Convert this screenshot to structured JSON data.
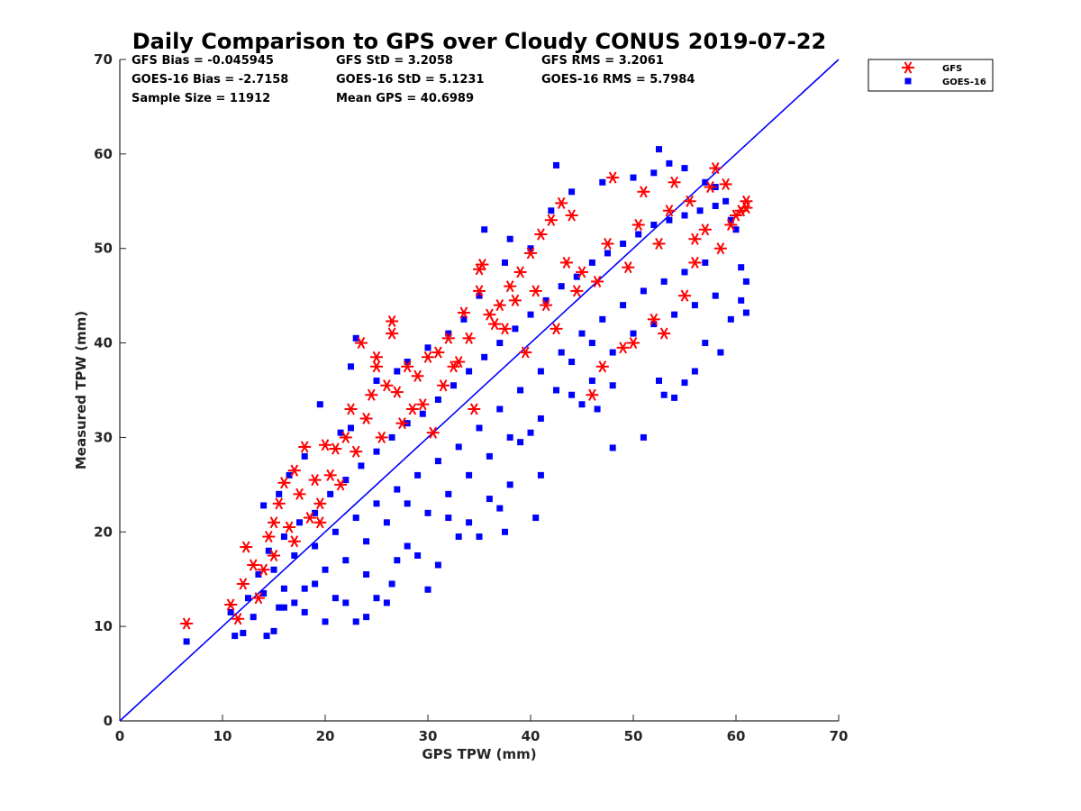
{
  "chart_data": {
    "type": "scatter",
    "title": "Daily Comparison to GPS over Cloudy CONUS 2019-07-22",
    "xlabel": "GPS TPW (mm)",
    "ylabel": "Measured TPW (mm)",
    "xlim": [
      0,
      70
    ],
    "ylim": [
      0,
      70
    ],
    "xticks": [
      "0",
      "10",
      "20",
      "30",
      "40",
      "50",
      "60",
      "70"
    ],
    "yticks": [
      "0",
      "10",
      "20",
      "30",
      "40",
      "50",
      "60",
      "70"
    ],
    "grid": false,
    "legend_position": "outside-top-right",
    "stats": [
      [
        "GFS Bias = -0.045945",
        "GFS StD = 3.2058",
        "GFS RMS = 3.2061"
      ],
      [
        "GOES-16 Bias = -2.7158",
        "GOES-16 StD = 5.1231",
        "GOES-16 RMS = 5.7984"
      ],
      [
        "Sample Size = 11912",
        "Mean GPS = 40.6989",
        ""
      ]
    ],
    "reference_line": {
      "type": "one-to-one",
      "x": [
        0,
        70
      ],
      "y": [
        0,
        70
      ],
      "color": "#0000ff"
    },
    "series": [
      {
        "name": "GOES-16",
        "marker": "square",
        "color": "#0000ff",
        "points": [
          [
            6.5,
            8.4
          ],
          [
            10.8,
            11.5
          ],
          [
            11.2,
            9.0
          ],
          [
            12.0,
            9.3
          ],
          [
            13.0,
            11.0
          ],
          [
            14.0,
            13.5
          ],
          [
            14.3,
            9.0
          ],
          [
            15.0,
            9.5
          ],
          [
            15.5,
            12.0
          ],
          [
            16.0,
            14.0
          ],
          [
            17.0,
            12.5
          ],
          [
            18.0,
            11.5
          ],
          [
            19.0,
            14.5
          ],
          [
            20.0,
            10.5
          ],
          [
            21.0,
            13.0
          ],
          [
            22.0,
            12.5
          ],
          [
            23.0,
            10.5
          ],
          [
            24.0,
            11.0
          ],
          [
            25.0,
            13.0
          ],
          [
            26.0,
            12.5
          ],
          [
            26.5,
            14.5
          ],
          [
            14.0,
            22.8
          ],
          [
            15.5,
            24.0
          ],
          [
            16.5,
            26.0
          ],
          [
            18.0,
            28.0
          ],
          [
            19.5,
            33.5
          ],
          [
            21.5,
            30.5
          ],
          [
            22.5,
            31.0
          ],
          [
            23.0,
            40.5
          ],
          [
            22.5,
            37.5
          ],
          [
            25.0,
            36.0
          ],
          [
            27.0,
            37.0
          ],
          [
            28.0,
            38.0
          ],
          [
            30.0,
            39.5
          ],
          [
            32.0,
            41.0
          ],
          [
            33.5,
            42.5
          ],
          [
            35.0,
            45.0
          ],
          [
            35.5,
            52.0
          ],
          [
            37.5,
            48.5
          ],
          [
            38.0,
            51.0
          ],
          [
            40.0,
            50.0
          ],
          [
            42.0,
            54.0
          ],
          [
            42.5,
            58.8
          ],
          [
            44.0,
            56.0
          ],
          [
            47.0,
            57.0
          ],
          [
            50.0,
            57.5
          ],
          [
            52.0,
            58.0
          ],
          [
            52.5,
            60.5
          ],
          [
            53.5,
            59.0
          ],
          [
            55.0,
            58.5
          ],
          [
            57.0,
            57.0
          ],
          [
            58.0,
            56.5
          ],
          [
            59.0,
            55.0
          ],
          [
            59.5,
            53.0
          ],
          [
            60.0,
            52.0
          ],
          [
            60.5,
            48.0
          ],
          [
            61.0,
            46.5
          ],
          [
            60.5,
            44.5
          ],
          [
            61.0,
            43.2
          ],
          [
            59.5,
            42.5
          ],
          [
            58.5,
            39.0
          ],
          [
            57.0,
            40.0
          ],
          [
            56.0,
            37.0
          ],
          [
            55.0,
            35.8
          ],
          [
            54.0,
            34.2
          ],
          [
            53.0,
            34.5
          ],
          [
            52.5,
            36.0
          ],
          [
            51.0,
            30.0
          ],
          [
            48.0,
            28.9
          ],
          [
            48.0,
            35.5
          ],
          [
            46.5,
            33.0
          ],
          [
            46.0,
            36.0
          ],
          [
            45.0,
            33.5
          ],
          [
            44.0,
            34.5
          ],
          [
            42.5,
            35.0
          ],
          [
            41.0,
            32.0
          ],
          [
            40.0,
            30.5
          ],
          [
            39.0,
            29.5
          ],
          [
            38.0,
            25.0
          ],
          [
            37.0,
            22.5
          ],
          [
            36.0,
            23.5
          ],
          [
            35.0,
            19.5
          ],
          [
            34.0,
            21.0
          ],
          [
            33.0,
            19.5
          ],
          [
            32.0,
            21.5
          ],
          [
            31.0,
            16.5
          ],
          [
            30.0,
            13.9
          ],
          [
            29.0,
            17.5
          ],
          [
            28.0,
            18.5
          ],
          [
            27.0,
            17.0
          ],
          [
            40.5,
            21.5
          ],
          [
            41.0,
            26.0
          ],
          [
            37.5,
            20.0
          ],
          [
            12.5,
            13.0
          ],
          [
            13.5,
            15.5
          ],
          [
            14.5,
            18.0
          ],
          [
            16.0,
            19.5
          ],
          [
            17.5,
            21.0
          ],
          [
            19.0,
            22.0
          ],
          [
            20.5,
            24.0
          ],
          [
            22.0,
            25.5
          ],
          [
            23.5,
            27.0
          ],
          [
            25.0,
            28.5
          ],
          [
            26.5,
            30.0
          ],
          [
            28.0,
            31.5
          ],
          [
            29.5,
            32.5
          ],
          [
            31.0,
            34.0
          ],
          [
            32.5,
            35.5
          ],
          [
            34.0,
            37.0
          ],
          [
            35.5,
            38.5
          ],
          [
            37.0,
            40.0
          ],
          [
            38.5,
            41.5
          ],
          [
            40.0,
            43.0
          ],
          [
            41.5,
            44.5
          ],
          [
            43.0,
            46.0
          ],
          [
            44.5,
            47.0
          ],
          [
            46.0,
            48.5
          ],
          [
            47.5,
            49.5
          ],
          [
            49.0,
            50.5
          ],
          [
            50.5,
            51.5
          ],
          [
            52.0,
            52.5
          ],
          [
            53.5,
            53.0
          ],
          [
            55.0,
            53.5
          ],
          [
            56.5,
            54.0
          ],
          [
            58.0,
            54.5
          ],
          [
            15.0,
            16.0
          ],
          [
            17.0,
            17.5
          ],
          [
            19.0,
            18.5
          ],
          [
            21.0,
            20.0
          ],
          [
            23.0,
            21.5
          ],
          [
            25.0,
            23.0
          ],
          [
            27.0,
            24.5
          ],
          [
            29.0,
            26.0
          ],
          [
            31.0,
            27.5
          ],
          [
            33.0,
            29.0
          ],
          [
            35.0,
            31.0
          ],
          [
            37.0,
            33.0
          ],
          [
            39.0,
            35.0
          ],
          [
            41.0,
            37.0
          ],
          [
            43.0,
            39.0
          ],
          [
            45.0,
            41.0
          ],
          [
            47.0,
            42.5
          ],
          [
            49.0,
            44.0
          ],
          [
            51.0,
            45.5
          ],
          [
            53.0,
            46.5
          ],
          [
            55.0,
            47.5
          ],
          [
            57.0,
            48.5
          ],
          [
            24.0,
            19.0
          ],
          [
            26.0,
            21.0
          ],
          [
            28.0,
            23.0
          ],
          [
            30.0,
            22.0
          ],
          [
            32.0,
            24.0
          ],
          [
            34.0,
            26.0
          ],
          [
            36.0,
            28.0
          ],
          [
            38.0,
            30.0
          ],
          [
            44.0,
            38.0
          ],
          [
            46.0,
            40.0
          ],
          [
            48.0,
            39.0
          ],
          [
            50.0,
            41.0
          ],
          [
            52.0,
            42.0
          ],
          [
            54.0,
            43.0
          ],
          [
            56.0,
            44.0
          ],
          [
            58.0,
            45.0
          ],
          [
            20.0,
            16.0
          ],
          [
            22.0,
            17.0
          ],
          [
            24.0,
            15.5
          ],
          [
            18.0,
            14.0
          ],
          [
            16.0,
            12.0
          ]
        ]
      },
      {
        "name": "GFS",
        "marker": "asterisk",
        "color": "#ff0000",
        "points": [
          [
            6.5,
            10.3
          ],
          [
            10.8,
            12.3
          ],
          [
            11.5,
            10.8
          ],
          [
            12.0,
            14.5
          ],
          [
            12.3,
            18.4
          ],
          [
            13.0,
            16.5
          ],
          [
            13.5,
            13.0
          ],
          [
            14.0,
            16.0
          ],
          [
            14.5,
            19.5
          ],
          [
            15.0,
            21.0
          ],
          [
            15.5,
            23.0
          ],
          [
            16.0,
            25.2
          ],
          [
            16.5,
            20.5
          ],
          [
            17.0,
            26.5
          ],
          [
            17.5,
            24.0
          ],
          [
            18.0,
            29.0
          ],
          [
            19.0,
            25.5
          ],
          [
            19.5,
            23.0
          ],
          [
            20.0,
            29.2
          ],
          [
            20.5,
            26.0
          ],
          [
            21.0,
            28.8
          ],
          [
            22.0,
            30.0
          ],
          [
            22.5,
            33.0
          ],
          [
            23.5,
            40.0
          ],
          [
            24.0,
            32.0
          ],
          [
            24.5,
            34.5
          ],
          [
            25.0,
            37.5
          ],
          [
            25.0,
            38.5
          ],
          [
            26.0,
            35.5
          ],
          [
            26.5,
            41.0
          ],
          [
            26.5,
            42.3
          ],
          [
            27.0,
            34.8
          ],
          [
            28.0,
            37.5
          ],
          [
            29.0,
            36.5
          ],
          [
            30.0,
            38.5
          ],
          [
            31.0,
            39.0
          ],
          [
            32.0,
            40.5
          ],
          [
            33.0,
            38.0
          ],
          [
            33.5,
            43.2
          ],
          [
            34.0,
            40.5
          ],
          [
            35.0,
            45.5
          ],
          [
            35.0,
            47.8
          ],
          [
            35.3,
            48.3
          ],
          [
            36.0,
            43.0
          ],
          [
            37.0,
            44.0
          ],
          [
            38.0,
            46.0
          ],
          [
            39.0,
            47.5
          ],
          [
            40.0,
            49.5
          ],
          [
            41.0,
            51.5
          ],
          [
            42.0,
            53.0
          ],
          [
            43.0,
            54.8
          ],
          [
            44.0,
            53.5
          ],
          [
            46.0,
            34.5
          ],
          [
            47.0,
            37.5
          ],
          [
            48.0,
            57.5
          ],
          [
            49.0,
            39.5
          ],
          [
            50.0,
            40.0
          ],
          [
            51.0,
            56.0
          ],
          [
            52.0,
            42.5
          ],
          [
            53.0,
            41.0
          ],
          [
            54.0,
            57.0
          ],
          [
            55.0,
            45.0
          ],
          [
            56.0,
            48.5
          ],
          [
            57.0,
            52.0
          ],
          [
            58.0,
            58.5
          ],
          [
            59.0,
            56.8
          ],
          [
            59.5,
            52.5
          ],
          [
            60.0,
            53.5
          ],
          [
            60.5,
            54.0
          ],
          [
            61.0,
            55.0
          ],
          [
            61.0,
            54.3
          ],
          [
            18.5,
            21.5
          ],
          [
            21.5,
            25.0
          ],
          [
            23.0,
            28.5
          ],
          [
            27.5,
            31.5
          ],
          [
            29.5,
            33.5
          ],
          [
            31.5,
            35.5
          ],
          [
            36.5,
            42.0
          ],
          [
            38.5,
            44.5
          ],
          [
            40.5,
            45.5
          ],
          [
            43.5,
            48.5
          ],
          [
            45.0,
            47.5
          ],
          [
            47.5,
            50.5
          ],
          [
            50.5,
            52.5
          ],
          [
            53.5,
            54.0
          ],
          [
            55.5,
            55.0
          ],
          [
            57.5,
            56.5
          ],
          [
            15.0,
            17.5
          ],
          [
            17.0,
            19.0
          ],
          [
            19.5,
            21.0
          ],
          [
            25.5,
            30.0
          ],
          [
            28.5,
            33.0
          ],
          [
            32.5,
            37.5
          ],
          [
            37.5,
            41.5
          ],
          [
            41.5,
            44.0
          ],
          [
            44.5,
            45.5
          ],
          [
            46.5,
            46.5
          ],
          [
            49.5,
            48.0
          ],
          [
            52.5,
            50.5
          ],
          [
            56.0,
            51.0
          ],
          [
            58.5,
            50.0
          ],
          [
            34.5,
            33.0
          ],
          [
            30.5,
            30.5
          ],
          [
            39.5,
            39.0
          ],
          [
            42.5,
            41.5
          ]
        ]
      }
    ]
  }
}
